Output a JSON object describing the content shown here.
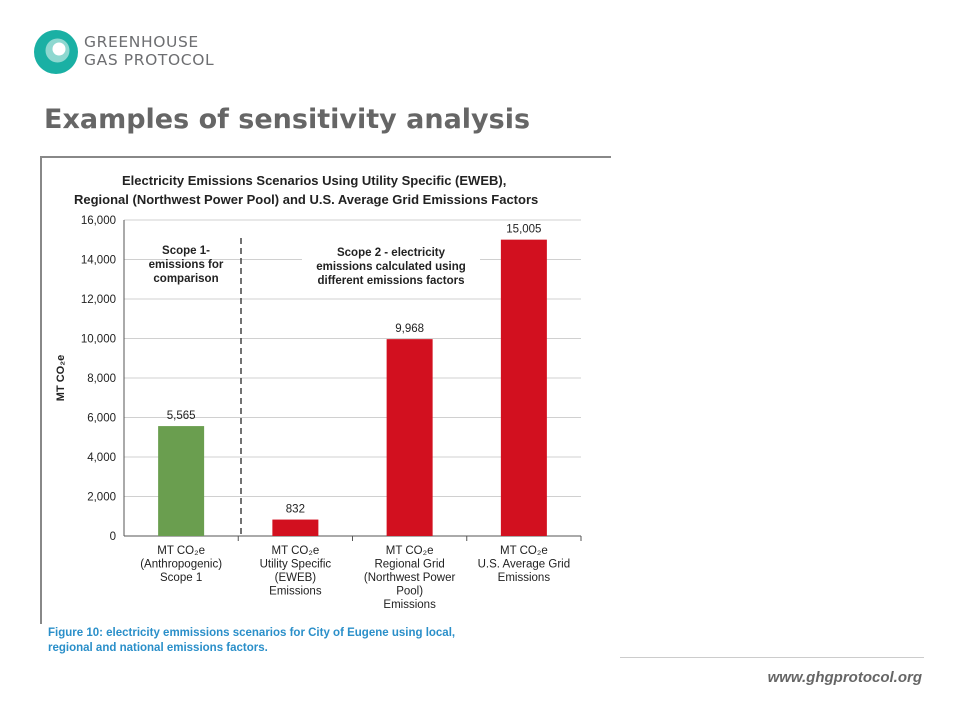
{
  "header": {
    "logo_line1": "GREENHOUSE",
    "logo_line2": "GAS PROTOCOL",
    "logo_icon": "ghg-protocol-logo-icon",
    "slide_title": "Examples of sensitivity analysis"
  },
  "chart_data": {
    "type": "bar",
    "title_line1": "Electricity Emissions Scenarios Using Utility Specific (EWEB),",
    "title_line2": "Regional (Northwest Power Pool) and U.S. Average Grid Emissions Factors",
    "ylabel": "MT CO₂e",
    "ylim": [
      0,
      16000
    ],
    "yticks": [
      "0",
      "2,000",
      "4,000",
      "6,000",
      "8,000",
      "10,000",
      "12,000",
      "14,000",
      "16,000"
    ],
    "grid": true,
    "categories": [
      [
        "MT CO₂e",
        "(Anthropogenic)",
        "Scope 1"
      ],
      [
        "MT CO₂e",
        "Utility Specific",
        "(EWEB)",
        "Emissions"
      ],
      [
        "MT CO₂e",
        "Regional Grid",
        "(Northwest Power",
        "Pool)",
        "Emissions"
      ],
      [
        "MT CO₂e",
        "U.S. Average Grid",
        "Emissions"
      ]
    ],
    "values": [
      5565,
      832,
      9968,
      15005
    ],
    "data_labels": [
      "5,565",
      "832",
      "9,968",
      "15,005"
    ],
    "bar_colors": [
      "#6a9e4f",
      "#d2101f",
      "#d2101f",
      "#d2101f"
    ],
    "annotations": {
      "scope1": [
        "Scope 1-",
        "emissions for",
        "comparison"
      ],
      "scope2": [
        "Scope 2 - electricity",
        "emissions calculated using",
        "different emissions factors"
      ]
    }
  },
  "caption": {
    "line1": "Figure 10: electricity emmissions scenarios for City of Eugene using local,",
    "line2": "regional and national emissions factors."
  },
  "footer": {
    "url": "www.ghgprotocol.org"
  },
  "colors": {
    "accent_teal": "#1ab0a4",
    "caption_blue": "#2a8fc9",
    "scope1_green": "#6a9e4f",
    "scope2_red": "#d2101f"
  }
}
